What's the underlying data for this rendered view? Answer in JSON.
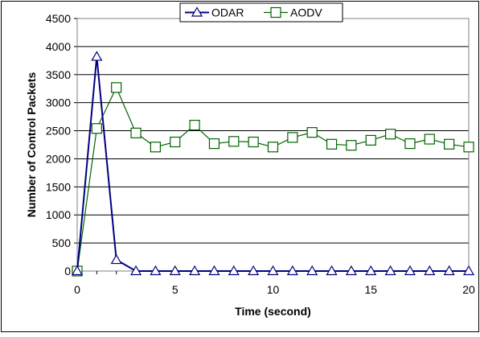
{
  "chart_data": {
    "type": "line",
    "title": "",
    "xlabel": "Time (second)",
    "ylabel": "Number of Control Packets",
    "xlim": [
      0,
      20
    ],
    "ylim": [
      0,
      4500
    ],
    "xticks": [
      0,
      5,
      10,
      15,
      20
    ],
    "yticks": [
      0,
      500,
      1000,
      1500,
      2000,
      2500,
      3000,
      3500,
      4000,
      4500
    ],
    "grid": "horizontal",
    "legend_position": "top-center",
    "x": [
      0,
      1,
      2,
      3,
      4,
      5,
      6,
      7,
      8,
      9,
      10,
      11,
      12,
      13,
      14,
      15,
      16,
      17,
      18,
      19,
      20
    ],
    "series": [
      {
        "name": "ODAR",
        "marker": "triangle",
        "color": "#000080",
        "values": [
          0,
          3820,
          200,
          0,
          0,
          0,
          0,
          0,
          0,
          0,
          0,
          0,
          0,
          0,
          0,
          0,
          0,
          0,
          0,
          0,
          0
        ]
      },
      {
        "name": "AODV",
        "marker": "square",
        "color": "#006400",
        "values": [
          0,
          2540,
          3270,
          2460,
          2210,
          2300,
          2600,
          2270,
          2310,
          2300,
          2210,
          2380,
          2470,
          2260,
          2240,
          2330,
          2440,
          2270,
          2350,
          2260,
          2210
        ]
      }
    ]
  }
}
